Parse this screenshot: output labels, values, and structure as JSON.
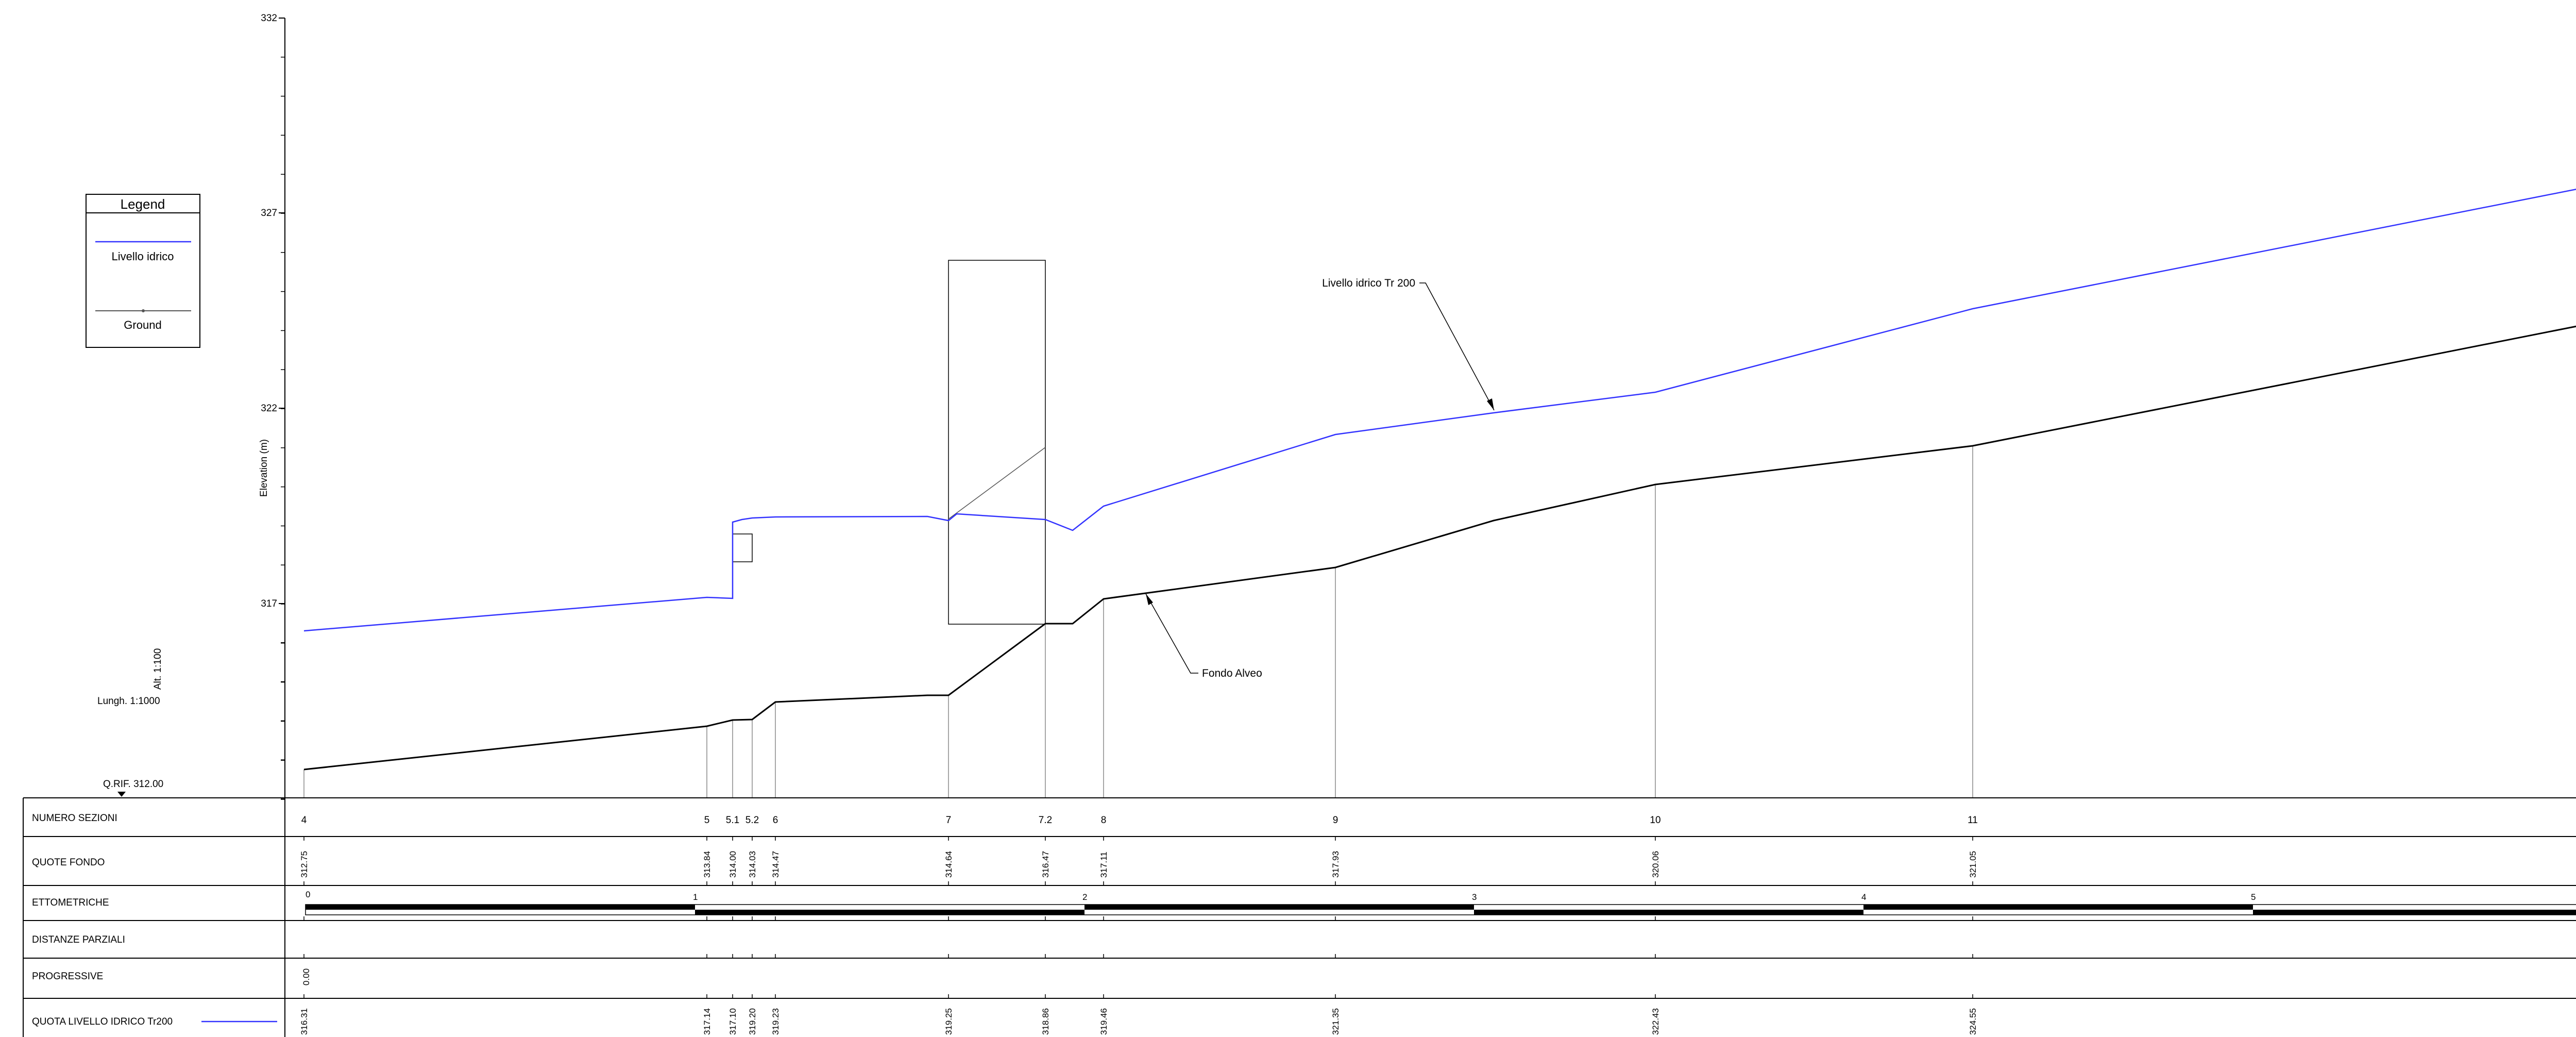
{
  "axis": {
    "y_label": "Elevation (m)",
    "y_ticks": [
      "317",
      "322",
      "327",
      "332"
    ]
  },
  "legend": {
    "title": "Legend",
    "items": [
      {
        "label": "Livello idrico",
        "color": "#3333ff"
      },
      {
        "label": "Ground",
        "color": "#000000"
      }
    ]
  },
  "scales": {
    "vertical": "Alt. 1:100",
    "horizontal": "Lungh. 1:1000",
    "reference": "Q.RIF. 312.00"
  },
  "annotations": {
    "water_label": "Livello idrico Tr 200",
    "bed_label": "Fondo Alveo"
  },
  "table": {
    "rows": [
      "NUMERO SEZIONI",
      "QUOTE FONDO",
      "ETTOMETRICHE",
      "DISTANZE PARZIALI",
      "PROGRESSIVE",
      "QUOTA LIVELLO IDRICO Tr200"
    ],
    "sections": [
      {
        "id": "4",
        "fondo": "312.75",
        "livello": "316.31"
      },
      {
        "id": "5",
        "fondo": "313.84",
        "livello": "317.14"
      },
      {
        "id": "5.1",
        "fondo": "314.00",
        "livello": "317.10"
      },
      {
        "id": "5.2",
        "fondo": "314.03",
        "livello": "319.20"
      },
      {
        "id": "6",
        "fondo": "314.47",
        "livello": "319.23"
      },
      {
        "id": "7",
        "fondo": "314.64",
        "livello": "319.25"
      },
      {
        "id": "7.2",
        "fondo": "316.47",
        "livello": "318.86"
      },
      {
        "id": "8",
        "fondo": "317.11",
        "livello": "319.46"
      },
      {
        "id": "9",
        "fondo": "317.93",
        "livello": "321.35"
      },
      {
        "id": "10",
        "fondo": "320.06",
        "livello": "322.43"
      },
      {
        "id": "11",
        "fondo": "321.05",
        "livello": "324.55"
      }
    ],
    "ettometriche": [
      "0",
      "1",
      "2",
      "3",
      "4",
      "5"
    ],
    "progressive": [
      "0.00"
    ]
  },
  "colors": {
    "water": "#3333ff",
    "ground": "#000000",
    "grid": "#888888"
  }
}
